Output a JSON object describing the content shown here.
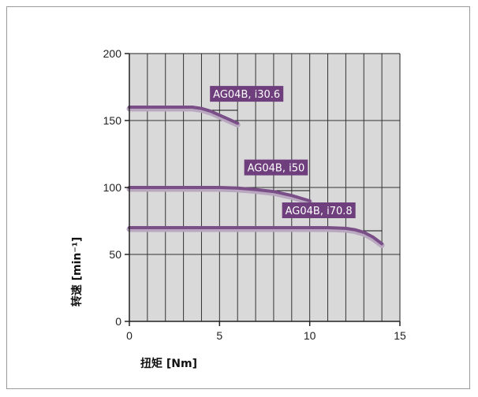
{
  "chart_data": {
    "type": "line",
    "xlabel": "扭矩 [Nm]",
    "ylabel": "转速 [min⁻¹]",
    "xlim": [
      0,
      15
    ],
    "ylim": [
      0,
      200
    ],
    "x_ticks": [
      "0",
      "5",
      "10",
      "15"
    ],
    "y_ticks": [
      "0",
      "50",
      "100",
      "150",
      "200"
    ],
    "grid": true,
    "plot_background": "#d9d9d9",
    "grid_color": "#333333",
    "series_color": "#7a4f87",
    "label_background": "#6f3e7d",
    "series": [
      {
        "name": "AG04B, i30.6",
        "x": [
          0,
          1,
          2,
          3,
          3.5,
          4,
          4.5,
          5,
          5.5,
          6
        ],
        "y": [
          160,
          160,
          160,
          160,
          160,
          159,
          157,
          154,
          151,
          148
        ]
      },
      {
        "name": "AG04B, i50",
        "x": [
          0,
          2,
          4,
          5,
          6,
          7,
          8,
          9,
          10
        ],
        "y": [
          100,
          100,
          100,
          100,
          99.5,
          98.5,
          97,
          94,
          90
        ]
      },
      {
        "name": "AG04B, i70.8",
        "x": [
          0,
          4,
          8,
          10,
          11,
          12,
          12.5,
          13,
          13.5,
          14
        ],
        "y": [
          70,
          70,
          70,
          70,
          70,
          69.5,
          68.5,
          66.5,
          63,
          58
        ]
      }
    ]
  }
}
